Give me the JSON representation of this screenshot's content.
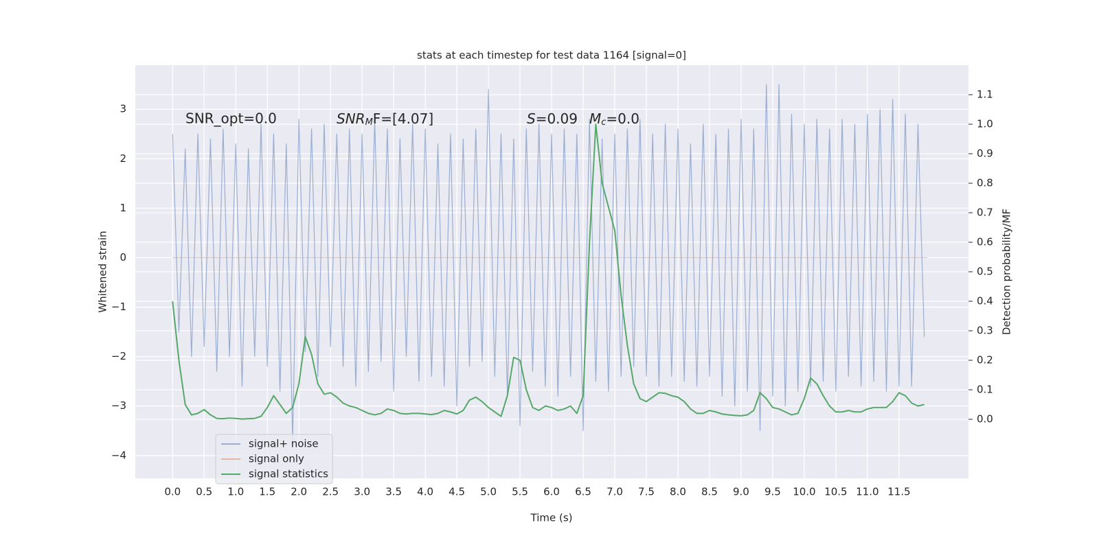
{
  "chart_data": {
    "type": "line",
    "title": "stats at each timestep for test data 1164 [signal=0]",
    "x_label": "Time (s)",
    "y_label": "Whitened strain",
    "y2_label": "Detection probability/MF",
    "annotations": [
      {
        "text": "SNR_opt=0.0"
      },
      {
        "main": "SNR",
        "sub": "M",
        "rest": "F=[4.07]"
      },
      {
        "main": "S",
        "rest": "=0.09"
      },
      {
        "main": "M",
        "sub": "c",
        "rest": "=0.0"
      }
    ],
    "grid": true,
    "legend": "lower left",
    "xlim": [
      -0.59,
      12.6
    ],
    "ylim": [
      -4.46,
      3.89
    ],
    "y2lim": [
      -0.2,
      1.2
    ],
    "xticks": [
      {
        "value": 0,
        "label": "0.0"
      },
      0.5,
      {
        "value": 1,
        "label": "1.0"
      },
      1.5,
      {
        "value": 2,
        "label": "2.0"
      },
      2.5,
      {
        "value": 3,
        "label": "3.0"
      },
      3.5,
      {
        "value": 4,
        "label": "4.0"
      },
      4.5,
      {
        "value": 5,
        "label": "5.0"
      },
      5.5,
      {
        "value": 6,
        "label": "6.0"
      },
      6.5,
      {
        "value": 7,
        "label": "7.0"
      },
      7.5,
      {
        "value": 8,
        "label": "8.0"
      },
      8.5,
      {
        "value": 9,
        "label": "9.0"
      },
      9.5,
      {
        "value": 10,
        "label": "10.0"
      },
      10.5,
      {
        "value": 11,
        "label": "11.0"
      },
      11.5
    ],
    "yticks": [
      {
        "value": -4,
        "label": "−4"
      },
      {
        "value": -3,
        "label": "−3"
      },
      {
        "value": -2,
        "label": "−2"
      },
      {
        "value": -1,
        "label": "−1"
      },
      0,
      1,
      2,
      3
    ],
    "y2ticks": [
      {
        "value": 0,
        "label": "0.0"
      },
      0.1,
      0.2,
      0.3,
      0.4,
      0.5,
      0.6,
      0.7,
      0.8,
      0.9,
      {
        "value": 1,
        "label": "1.0"
      },
      1.1
    ],
    "x": [
      0.0,
      0.1,
      0.2,
      0.3,
      0.4,
      0.5,
      0.6,
      0.7,
      0.8,
      0.9,
      1.0,
      1.1,
      1.2,
      1.3,
      1.4,
      1.5,
      1.6,
      1.7,
      1.8,
      1.9,
      2.0,
      2.1,
      2.2,
      2.3,
      2.4,
      2.5,
      2.6,
      2.7,
      2.8,
      2.9,
      3.0,
      3.1,
      3.2,
      3.3,
      3.4,
      3.5,
      3.6,
      3.7,
      3.8,
      3.9,
      4.0,
      4.1,
      4.2,
      4.3,
      4.4,
      4.5,
      4.6,
      4.7,
      4.8,
      4.9,
      5.0,
      5.1,
      5.2,
      5.3,
      5.4,
      5.5,
      5.6,
      5.7,
      5.8,
      5.9,
      6.0,
      6.1,
      6.2,
      6.3,
      6.4,
      6.5,
      6.6,
      6.7,
      6.8,
      6.9,
      7.0,
      7.1,
      7.2,
      7.3,
      7.4,
      7.5,
      7.6,
      7.7,
      7.8,
      7.9,
      8.0,
      8.1,
      8.2,
      8.3,
      8.4,
      8.5,
      8.6,
      8.7,
      8.8,
      8.9,
      9.0,
      9.1,
      9.2,
      9.3,
      9.4,
      9.5,
      9.6,
      9.7,
      9.8,
      9.9,
      10.0,
      10.1,
      10.2,
      10.3,
      10.4,
      10.5,
      10.6,
      10.7,
      10.8,
      10.9,
      11.0,
      11.1,
      11.2,
      11.3,
      11.4,
      11.5,
      11.6,
      11.7,
      11.8,
      11.9
    ],
    "series": [
      {
        "name": "signal+ noise",
        "color": "#4c72b0",
        "opacity": 0.5,
        "values": [
          2.5,
          -1.5,
          2.2,
          -2.0,
          2.5,
          -1.8,
          2.4,
          -2.3,
          2.6,
          -2.0,
          2.3,
          -2.6,
          2.2,
          -2.0,
          2.7,
          -2.2,
          2.5,
          -2.7,
          2.3,
          -3.7,
          2.8,
          -1.9,
          2.6,
          -2.4,
          2.7,
          -1.8,
          2.5,
          -2.2,
          2.6,
          -2.6,
          2.5,
          -2.3,
          2.8,
          -2.1,
          2.6,
          -2.7,
          2.4,
          -2.0,
          2.7,
          -2.5,
          2.6,
          -2.4,
          2.3,
          -2.6,
          2.5,
          -3.0,
          2.4,
          -2.2,
          2.6,
          -2.1,
          3.4,
          -2.4,
          2.5,
          -2.8,
          2.4,
          -3.4,
          2.6,
          -2.3,
          2.7,
          -2.6,
          2.5,
          -2.8,
          2.6,
          -2.4,
          2.5,
          -3.5,
          2.8,
          -2.5,
          2.4,
          -2.7,
          2.5,
          -2.4,
          2.6,
          -2.2,
          2.8,
          -2.4,
          2.5,
          -2.6,
          2.7,
          -2.4,
          2.6,
          -2.5,
          2.3,
          -2.6,
          2.7,
          -2.4,
          2.5,
          -2.8,
          2.6,
          -3.0,
          2.8,
          -2.7,
          2.6,
          -3.5,
          3.5,
          -2.8,
          3.5,
          -3.0,
          2.9,
          -2.7,
          2.7,
          -2.6,
          2.8,
          -2.5,
          2.6,
          -2.7,
          2.8,
          -2.4,
          2.7,
          -2.6,
          2.9,
          -2.5,
          3.0,
          -2.7,
          3.2,
          -2.6,
          2.9,
          -2.6,
          2.7,
          -1.6
        ]
      },
      {
        "name": "signal only",
        "color": "#dd8452",
        "opacity": 0.5,
        "x": [
          0,
          11.95
        ],
        "values": [
          0,
          0
        ]
      },
      {
        "name": "signal statistics",
        "color": "#55a868",
        "opacity": 1,
        "axis": "y2",
        "values": [
          0.4,
          0.2,
          0.05,
          0.015,
          0.02,
          0.033,
          0.015,
          0.003,
          0.002,
          0.004,
          0.003,
          0.001,
          0.002,
          0.003,
          0.01,
          0.04,
          0.08,
          0.05,
          0.02,
          0.04,
          0.12,
          0.28,
          0.22,
          0.12,
          0.085,
          0.09,
          0.075,
          0.055,
          0.045,
          0.04,
          0.03,
          0.02,
          0.015,
          0.02,
          0.035,
          0.03,
          0.02,
          0.018,
          0.02,
          0.02,
          0.018,
          0.016,
          0.02,
          0.03,
          0.025,
          0.018,
          0.03,
          0.065,
          0.075,
          0.06,
          0.04,
          0.025,
          0.01,
          0.08,
          0.21,
          0.2,
          0.1,
          0.04,
          0.03,
          0.045,
          0.04,
          0.03,
          0.035,
          0.045,
          0.02,
          0.08,
          0.6,
          1.0,
          0.8,
          0.72,
          0.64,
          0.42,
          0.25,
          0.12,
          0.07,
          0.06,
          0.075,
          0.09,
          0.088,
          0.08,
          0.075,
          0.06,
          0.035,
          0.02,
          0.02,
          0.03,
          0.025,
          0.018,
          0.015,
          0.013,
          0.012,
          0.015,
          0.03,
          0.09,
          0.07,
          0.04,
          0.035,
          0.025,
          0.015,
          0.02,
          0.07,
          0.14,
          0.12,
          0.08,
          0.045,
          0.025,
          0.025,
          0.03,
          0.025,
          0.025,
          0.035,
          0.04,
          0.04,
          0.04,
          0.06,
          0.09,
          0.08,
          0.055,
          0.045,
          0.05
        ]
      }
    ]
  }
}
